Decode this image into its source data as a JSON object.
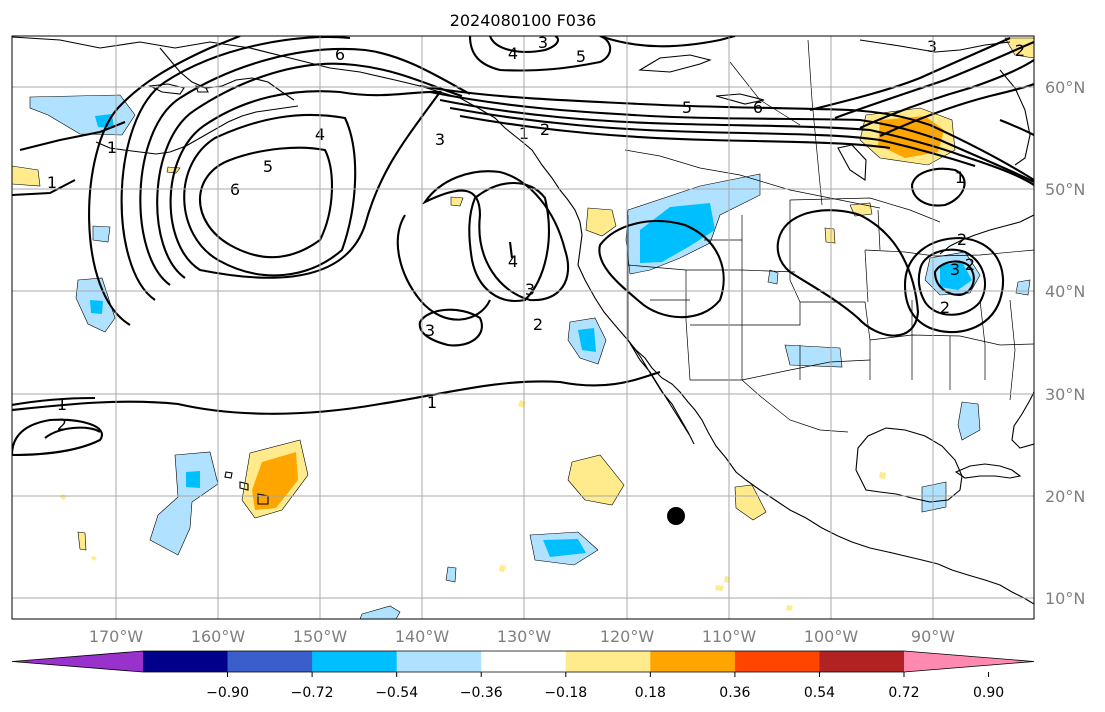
{
  "title": "2024080100 F036",
  "map": {
    "lat_labels": [
      "60°N",
      "50°N",
      "40°N",
      "30°N",
      "20°N",
      "10°N"
    ],
    "lon_labels": [
      "170°W",
      "160°W",
      "150°W",
      "140°W",
      "130°W",
      "120°W",
      "110°W",
      "100°W",
      "90°W"
    ],
    "contour_labels": [
      "6",
      "5",
      "4",
      "3",
      "2",
      "1",
      "4",
      "3",
      "5",
      "6",
      "5",
      "6",
      "3",
      "2",
      "4",
      "3",
      "3",
      "2",
      "2",
      "1",
      "1",
      "1",
      "2",
      "1",
      "3",
      "2",
      "2",
      "1"
    ],
    "marker": "black-dot"
  },
  "colorbar": {
    "ticks": [
      "−0.90",
      "−0.72",
      "−0.54",
      "−0.36",
      "−0.18",
      "0.18",
      "0.36",
      "0.54",
      "0.72",
      "0.90"
    ],
    "colors": [
      "#9932cc",
      "#00008b",
      "#3a5fcd",
      "#00bfff",
      "#b0e2ff",
      "#ffffff",
      "#ffeb8c",
      "#ffa500",
      "#ff4500",
      "#b22222",
      "#ff89b0"
    ]
  }
}
